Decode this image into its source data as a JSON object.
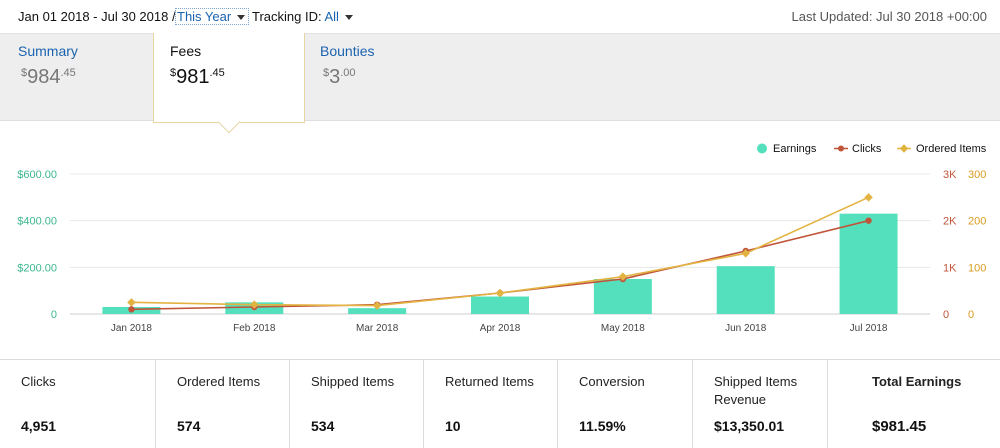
{
  "topbar": {
    "date_range": "Jan 01 2018 - Jul 30 2018 /",
    "period_label": "This Year",
    "tracking_label": "Tracking ID:",
    "tracking_value": "All",
    "last_updated": "Last Updated: Jul 30 2018 +00:00"
  },
  "tabs": {
    "summary": {
      "label": "Summary",
      "currency": "$",
      "whole": "984",
      "cents": ".45"
    },
    "fees": {
      "label": "Fees",
      "currency": "$",
      "whole": "981",
      "cents": ".45"
    },
    "bounties": {
      "label": "Bounties",
      "currency": "$",
      "whole": "3",
      "cents": ".00"
    }
  },
  "legend": {
    "earnings": "Earnings",
    "clicks": "Clicks",
    "ordered_items": "Ordered Items"
  },
  "chart_data": {
    "type": "bar",
    "categories": [
      "Jan 2018",
      "Feb 2018",
      "Mar 2018",
      "Apr 2018",
      "May 2018",
      "Jun 2018",
      "Jul 2018"
    ],
    "series": [
      {
        "name": "Earnings",
        "kind": "bar",
        "axis": "left",
        "values": [
          30,
          50,
          25,
          75,
          150,
          205,
          430
        ]
      },
      {
        "name": "Clicks",
        "kind": "line",
        "axis": "right-outer",
        "values": [
          100,
          150,
          200,
          450,
          750,
          1350,
          2000
        ]
      },
      {
        "name": "Ordered Items",
        "kind": "line",
        "axis": "right-inner",
        "values": [
          25,
          20,
          18,
          45,
          80,
          130,
          250
        ]
      }
    ],
    "y_left": {
      "min": 0,
      "max": 600,
      "ticks": [
        "0",
        "$200.00",
        "$400.00",
        "$600.00"
      ]
    },
    "y_right_outer": {
      "min": 0,
      "max": 3000,
      "ticks": [
        "0",
        "1K",
        "2K",
        "3K"
      ]
    },
    "y_right_inner": {
      "min": 0,
      "max": 300,
      "ticks": [
        "0",
        "100",
        "200",
        "300"
      ]
    },
    "legend_position": "top-right",
    "colors": {
      "earnings": "#55e0bd",
      "clicks": "#c0553a",
      "ordered_items": "#e3b341"
    }
  },
  "stats": [
    {
      "label": "Clicks",
      "value": "4,951"
    },
    {
      "label": "Ordered Items",
      "value": "574"
    },
    {
      "label": "Shipped Items",
      "value": "534"
    },
    {
      "label": "Returned Items",
      "value": "10"
    },
    {
      "label": "Conversion",
      "value": "11.59%"
    },
    {
      "label": "Shipped Items Revenue",
      "value": "$13,350.01"
    },
    {
      "label": "Total Earnings",
      "value": "$981.45"
    }
  ]
}
